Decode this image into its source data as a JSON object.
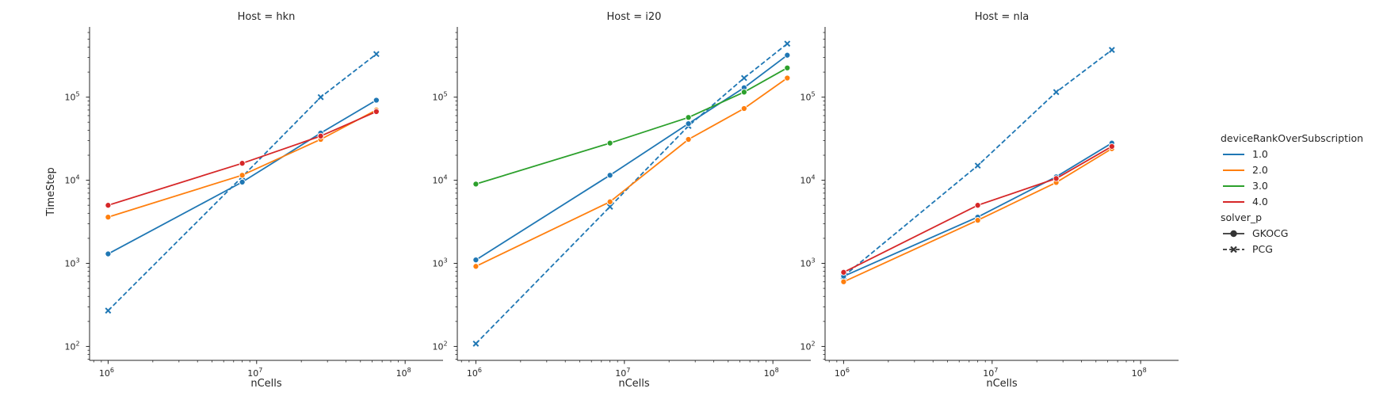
{
  "chart_data": {
    "type": "line",
    "ylabel": "TimeStep",
    "xlabel": "nCells",
    "xscale": "log",
    "yscale": "log",
    "xlim": [
      750000,
      180000000
    ],
    "ylim": [
      68,
      700000
    ],
    "x_ticks": [
      {
        "v": 1000000,
        "label": "10",
        "exp": "6"
      },
      {
        "v": 10000000,
        "label": "10",
        "exp": "7"
      },
      {
        "v": 100000000,
        "label": "10",
        "exp": "8"
      }
    ],
    "y_ticks": [
      {
        "v": 100,
        "label": "10",
        "exp": "2"
      },
      {
        "v": 1000,
        "label": "10",
        "exp": "3"
      },
      {
        "v": 10000,
        "label": "10",
        "exp": "4"
      },
      {
        "v": 100000,
        "label": "10",
        "exp": "5"
      }
    ],
    "hue_title": "deviceRankOverSubscription",
    "hue": [
      {
        "name": "1.0",
        "color": "#1f77b4"
      },
      {
        "name": "2.0",
        "color": "#ff7f0e"
      },
      {
        "name": "3.0",
        "color": "#2ca02c"
      },
      {
        "name": "4.0",
        "color": "#d62728"
      }
    ],
    "style_title": "solver_p",
    "styles": [
      {
        "name": "GKOCG",
        "marker": "circle",
        "dash": "solid"
      },
      {
        "name": "PCG",
        "marker": "x",
        "dash": "dashed"
      }
    ],
    "legend_position": "right",
    "panels": [
      {
        "title": "Host = hkn",
        "series": [
          {
            "hue": "1.0",
            "solver": "PCG",
            "x": [
              1000000,
              8000000,
              27000000,
              64000000
            ],
            "y": [
              270,
              11000,
              100000,
              330000
            ]
          },
          {
            "hue": "1.0",
            "solver": "GKOCG",
            "x": [
              1000000,
              8000000,
              27000000,
              64000000
            ],
            "y": [
              1300,
              9500,
              37000,
              92000
            ]
          },
          {
            "hue": "2.0",
            "solver": "GKOCG",
            "x": [
              1000000,
              8000000,
              27000000,
              64000000
            ],
            "y": [
              3600,
              11500,
              31000,
              70000
            ]
          },
          {
            "hue": "4.0",
            "solver": "GKOCG",
            "x": [
              1000000,
              8000000,
              27000000,
              64000000
            ],
            "y": [
              5000,
              16000,
              34000,
              67000
            ]
          }
        ]
      },
      {
        "title": "Host = i20",
        "series": [
          {
            "hue": "1.0",
            "solver": "PCG",
            "x": [
              1000000,
              8000000,
              27000000,
              64000000,
              125000000
            ],
            "y": [
              108,
              4800,
              45000,
              170000,
              440000
            ]
          },
          {
            "hue": "1.0",
            "solver": "GKOCG",
            "x": [
              1000000,
              8000000,
              27000000,
              64000000,
              125000000
            ],
            "y": [
              1100,
              11500,
              48000,
              130000,
              320000
            ]
          },
          {
            "hue": "2.0",
            "solver": "GKOCG",
            "x": [
              1000000,
              8000000,
              27000000,
              64000000,
              125000000
            ],
            "y": [
              920,
              5500,
              31000,
              73000,
              170000
            ]
          },
          {
            "hue": "3.0",
            "solver": "GKOCG",
            "x": [
              1000000,
              8000000,
              27000000,
              64000000,
              125000000
            ],
            "y": [
              9000,
              28000,
              57000,
              115000,
              225000
            ]
          }
        ]
      },
      {
        "title": "Host = nla",
        "series": [
          {
            "hue": "1.0",
            "solver": "PCG",
            "x": [
              1000000,
              8000000,
              27000000,
              64000000
            ],
            "y": [
              700,
              15000,
              115000,
              370000
            ]
          },
          {
            "hue": "1.0",
            "solver": "GKOCG",
            "x": [
              1000000,
              8000000,
              27000000,
              64000000
            ],
            "y": [
              700,
              3600,
              11000,
              28000
            ]
          },
          {
            "hue": "2.0",
            "solver": "GKOCG",
            "x": [
              1000000,
              8000000,
              27000000,
              64000000
            ],
            "y": [
              600,
              3300,
              9400,
              24000
            ]
          },
          {
            "hue": "4.0",
            "solver": "GKOCG",
            "x": [
              1000000,
              8000000,
              27000000,
              64000000
            ],
            "y": [
              780,
              5000,
              10500,
              25500
            ]
          }
        ]
      }
    ]
  }
}
